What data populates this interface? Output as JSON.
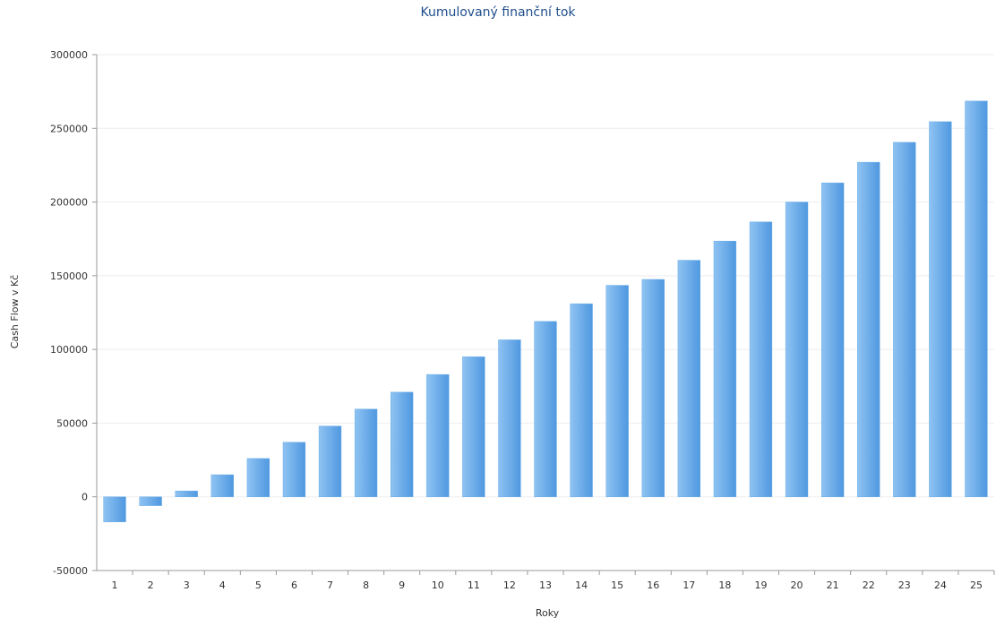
{
  "chart_data": {
    "type": "bar",
    "title": "Kumulovaný finanční tok",
    "xlabel": "Roky",
    "ylabel": "Cash Flow v Kč",
    "categories": [
      "1",
      "2",
      "3",
      "4",
      "5",
      "6",
      "7",
      "8",
      "9",
      "10",
      "11",
      "12",
      "13",
      "14",
      "15",
      "16",
      "17",
      "18",
      "19",
      "20",
      "21",
      "22",
      "23",
      "24",
      "25"
    ],
    "values": [
      -17000,
      -6000,
      4000,
      15000,
      26000,
      37000,
      48000,
      59500,
      71000,
      83000,
      95000,
      106500,
      119000,
      131000,
      143500,
      147500,
      160500,
      173500,
      186500,
      200000,
      213000,
      227000,
      240500,
      254500,
      268500
    ],
    "ylim": [
      -50000,
      300000
    ],
    "yticks": [
      "-50000",
      "0",
      "50000",
      "100000",
      "150000",
      "200000",
      "250000",
      "300000"
    ],
    "grid": true,
    "legend": "none",
    "colors": {
      "bar_light": "#8fc3f2",
      "bar_dark": "#4f98e0",
      "title": "#1f4e8c",
      "grid": "#eeeeee"
    }
  }
}
